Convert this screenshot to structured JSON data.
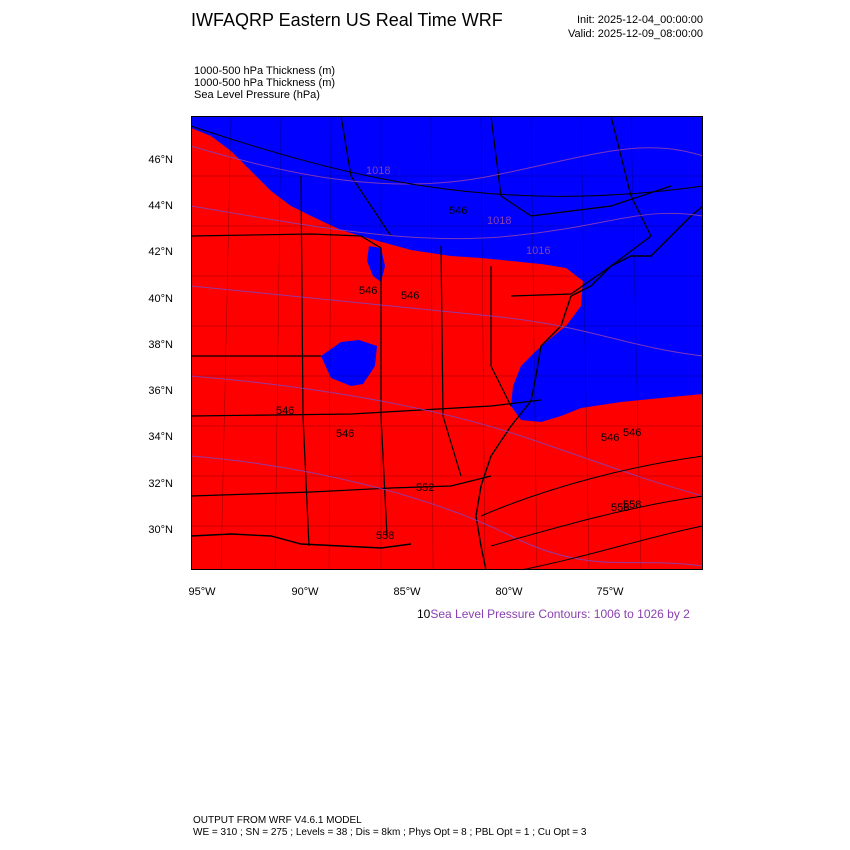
{
  "title": "IWFAQRP Eastern US Real Time WRF",
  "init": "Init: 2025-12-04_00:00:00",
  "valid": "Valid: 2025-12-09_08:00:00",
  "fields": [
    "1000-500 hPa Thickness   (m)",
    "1000-500 hPa Thickness   (m)",
    "Sea Level Pressure   (hPa)"
  ],
  "lat_labels": [
    "46°N",
    "44°N",
    "42°N",
    "40°N",
    "38°N",
    "36°N",
    "34°N",
    "32°N",
    "30°N"
  ],
  "lon_labels": [
    "95°W",
    "90°W",
    "85°W",
    "80°W",
    "75°W"
  ],
  "contour_note_prefix": "10",
  "contour_note": "Sea Level Pressure Contours: 1006 to 1026 by 2",
  "footer_line1": "OUTPUT FROM WRF V4.6.1 MODEL",
  "footer_line2": "WE = 310 ; SN = 275 ; Levels = 38 ; Dis = 8km ; Phys Opt = 8 ; PBL Opt = 1 ; Cu Opt = 3",
  "map_labels": {
    "thickness_values": [
      "546",
      "546",
      "546",
      "546",
      "546",
      "546",
      "558",
      "558",
      "558",
      "552",
      "546"
    ],
    "pressure_values": [
      "1018",
      "1018",
      "1016"
    ]
  },
  "colors": {
    "cold_fill": "#0000ff",
    "warm_fill": "#ff0000",
    "pressure_contour": "#8a3fb0",
    "boundary": "#000000"
  }
}
